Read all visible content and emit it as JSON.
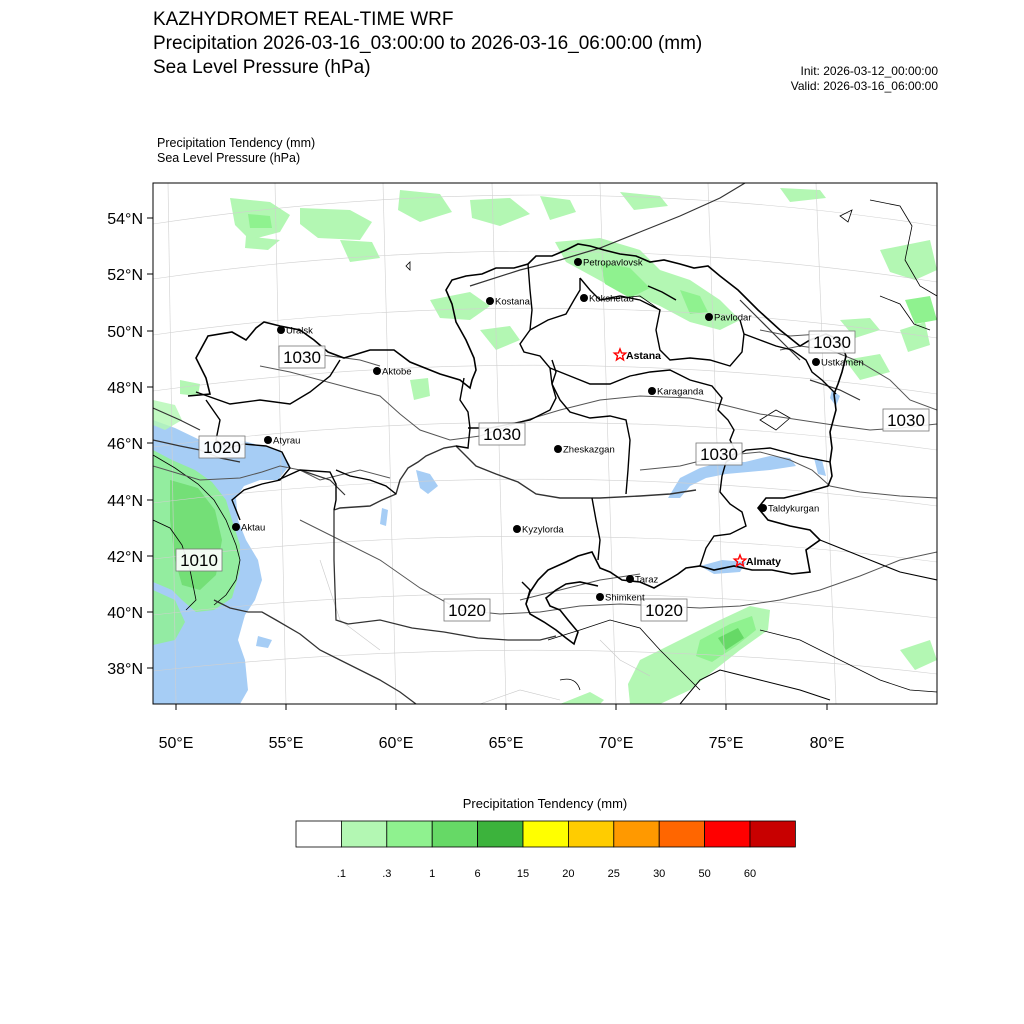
{
  "header": {
    "title_line1": "KAZHYDROMET REAL-TIME WRF",
    "title_line2": "Precipitation 2026-03-16_03:00:00 to 2026-03-16_06:00:00 (mm)",
    "title_line3": "Sea Level Pressure  (hPa)",
    "init": "Init: 2026-03-12_00:00:00",
    "valid": "Valid: 2026-03-16_06:00:00"
  },
  "map": {
    "subtitle1": "Precipitation Tendency   (mm)",
    "subtitle2": "Sea Level Pressure   (hPa)",
    "lat_labels": [
      "54°N",
      "52°N",
      "50°N",
      "48°N",
      "46°N",
      "44°N",
      "42°N",
      "40°N",
      "38°N"
    ],
    "lon_labels": [
      "50°E",
      "55°E",
      "60°E",
      "65°E",
      "70°E",
      "75°E",
      "80°E"
    ],
    "cities": [
      {
        "name": "Petropavlovsk",
        "type": "dot"
      },
      {
        "name": "Kostanai",
        "type": "dot"
      },
      {
        "name": "Kokshetau",
        "type": "dot"
      },
      {
        "name": "Pavlodar",
        "type": "dot"
      },
      {
        "name": "Uralsk",
        "type": "dot"
      },
      {
        "name": "Astana",
        "type": "star"
      },
      {
        "name": "Ustkamen",
        "type": "dot"
      },
      {
        "name": "Aktobe",
        "type": "dot"
      },
      {
        "name": "Karaganda",
        "type": "dot"
      },
      {
        "name": "Atyrau",
        "type": "dot"
      },
      {
        "name": "Zheskazgan",
        "type": "dot"
      },
      {
        "name": "Taldykurgan",
        "type": "dot"
      },
      {
        "name": "Aktau",
        "type": "dot"
      },
      {
        "name": "Kyzylorda",
        "type": "dot"
      },
      {
        "name": "Almaty",
        "type": "star"
      },
      {
        "name": "Taraz",
        "type": "dot"
      },
      {
        "name": "Shimkent",
        "type": "dot"
      }
    ],
    "isobar_labels": [
      "1030",
      "1020",
      "1030",
      "1030",
      "1030",
      "1030",
      "1010",
      "1020",
      "1020"
    ],
    "colors": {
      "water": "#a6cdf5",
      "light_green": "#b3f7b3",
      "green": "#8ff28f",
      "mid_green": "#66d966",
      "city_star": "#ff0000"
    }
  },
  "colorbar": {
    "title": "Precipitation Tendency (mm)",
    "colors": [
      "#ffffff",
      "#b3f7b3",
      "#8ff28f",
      "#66d966",
      "#3cb33c",
      "#ffff00",
      "#ffcc00",
      "#ff9900",
      "#ff6600",
      "#ff0000",
      "#c80000"
    ],
    "labels": [
      ".1",
      ".3",
      "1",
      "6",
      "15",
      "20",
      "25",
      "30",
      "50",
      "60"
    ]
  }
}
